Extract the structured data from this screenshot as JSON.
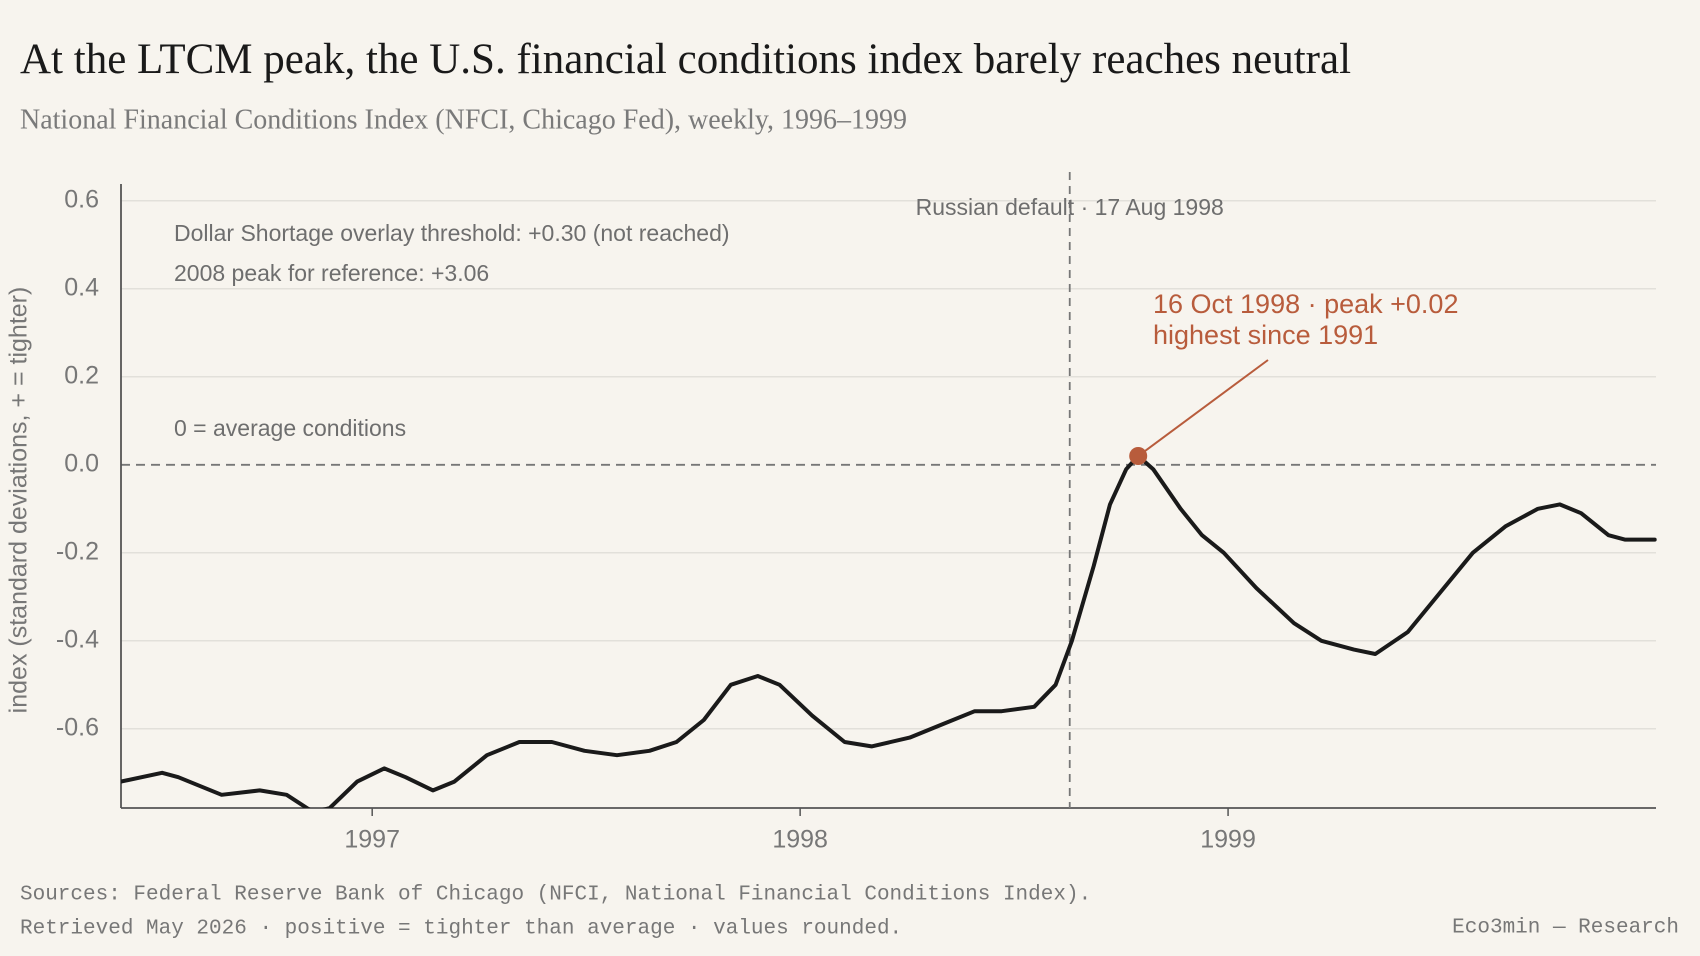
{
  "chart_data": {
    "type": "line",
    "title": "At the LTCM peak, the U.S. financial conditions index barely reaches neutral",
    "subtitle": "National Financial Conditions Index (NFCI, Chicago Fed), weekly, 1996–1999",
    "y_label": "index (standard deviations, + = tighter)",
    "x": [
      1996.413,
      1996.509,
      1996.547,
      1996.648,
      1996.737,
      1996.8,
      1996.863,
      1996.901,
      1996.965,
      1997.028,
      1997.078,
      1997.142,
      1997.192,
      1997.268,
      1997.344,
      1997.42,
      1997.496,
      1997.572,
      1997.648,
      1997.711,
      1997.775,
      1997.838,
      1997.901,
      1997.952,
      1998.028,
      1998.104,
      1998.167,
      1998.256,
      1998.332,
      1998.408,
      1998.471,
      1998.547,
      1998.597,
      1998.635,
      1998.686,
      1998.724,
      1998.762,
      1998.79,
      1998.825,
      1998.889,
      1998.939,
      1998.99,
      1999.066,
      1999.154,
      1999.218,
      1999.294,
      1999.344,
      1999.42,
      1999.496,
      1999.572,
      1999.648,
      1999.724,
      1999.775,
      1999.825,
      1999.889,
      1999.927,
      1999.997
    ],
    "series": [
      {
        "name": "NFCI",
        "color": "#1a1a1a",
        "values": [
          -0.72,
          -0.7,
          -0.71,
          -0.75,
          -0.74,
          -0.75,
          -0.79,
          -0.78,
          -0.72,
          -0.69,
          -0.71,
          -0.74,
          -0.72,
          -0.66,
          -0.63,
          -0.63,
          -0.65,
          -0.66,
          -0.65,
          -0.63,
          -0.58,
          -0.5,
          -0.48,
          -0.5,
          -0.57,
          -0.63,
          -0.64,
          -0.62,
          -0.59,
          -0.56,
          -0.56,
          -0.55,
          -0.5,
          -0.4,
          -0.23,
          -0.09,
          -0.01,
          0.02,
          -0.01,
          -0.1,
          -0.16,
          -0.2,
          -0.28,
          -0.36,
          -0.4,
          -0.42,
          -0.43,
          -0.38,
          -0.29,
          -0.2,
          -0.14,
          -0.1,
          -0.09,
          -0.11,
          -0.16,
          -0.17,
          -0.17
        ]
      }
    ],
    "xlim": [
      1996.413,
      2000.0
    ],
    "xticks": [
      1997,
      1998,
      1999
    ],
    "ylim": [
      -0.78,
      0.62
    ],
    "yticks": [
      0.6,
      0.4,
      0.2,
      {
        "value": 0,
        "label": "0.0"
      },
      -0.2,
      -0.4,
      -0.6
    ],
    "grid": true,
    "reference_line": 0,
    "vline": {
      "x": 1998.63,
      "label": "Russian default · 17 Aug 1998"
    },
    "highlight": {
      "x": 1998.79,
      "value": 0.02,
      "color": "#b85c3c",
      "label_lines": [
        "16 Oct 1998 · peak +0.02",
        "highest since 1991"
      ]
    },
    "annotations": [
      "Dollar Shortage overlay threshold: +0.30 (not reached)",
      "2008 peak for reference: +3.06",
      "0 = average conditions"
    ],
    "source_lines": [
      "Sources: Federal Reserve Bank of Chicago (NFCI, National Financial Conditions Index).",
      "Retrieved May 2026 · positive = tighter than average · values rounded."
    ],
    "credit": "Eco3min — Research"
  }
}
